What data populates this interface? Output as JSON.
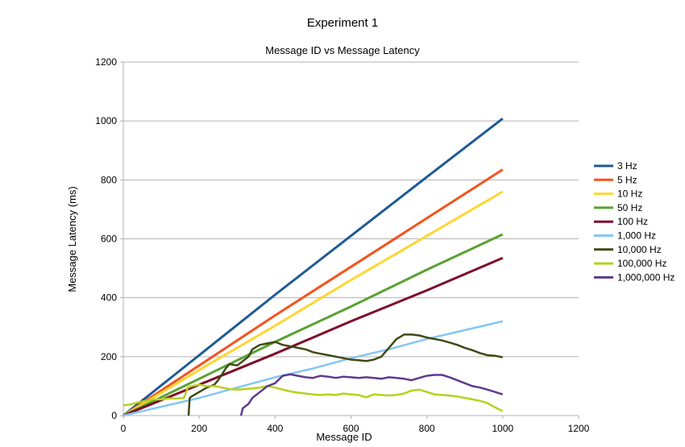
{
  "chart_data": {
    "type": "line",
    "title": "Experiment 1",
    "subtitle": "Message ID vs Message Latency",
    "xlabel": "Message ID",
    "ylabel": "Message Latency (ms)",
    "xlim": [
      0,
      1200
    ],
    "ylim": [
      0,
      1200
    ],
    "xticks": [
      0,
      200,
      400,
      600,
      800,
      1000,
      1200
    ],
    "yticks": [
      0,
      200,
      400,
      600,
      800,
      1000,
      1200
    ],
    "grid": "horizontal",
    "legend_position": "right",
    "series": [
      {
        "name": "3 Hz",
        "color": "#1f5a96",
        "points": [
          [
            0,
            0
          ],
          [
            200,
            205
          ],
          [
            400,
            410
          ],
          [
            600,
            610
          ],
          [
            800,
            810
          ],
          [
            1000,
            1008
          ]
        ]
      },
      {
        "name": "5 Hz",
        "color": "#f4531f",
        "points": [
          [
            0,
            0
          ],
          [
            200,
            170
          ],
          [
            400,
            340
          ],
          [
            600,
            505
          ],
          [
            800,
            670
          ],
          [
            1000,
            835
          ]
        ]
      },
      {
        "name": "10 Hz",
        "color": "#ffd633",
        "points": [
          [
            0,
            0
          ],
          [
            200,
            155
          ],
          [
            400,
            305
          ],
          [
            600,
            460
          ],
          [
            800,
            610
          ],
          [
            1000,
            760
          ]
        ]
      },
      {
        "name": "50 Hz",
        "color": "#5aa132",
        "points": [
          [
            0,
            0
          ],
          [
            200,
            125
          ],
          [
            400,
            250
          ],
          [
            600,
            370
          ],
          [
            800,
            495
          ],
          [
            1000,
            615
          ]
        ]
      },
      {
        "name": "100 Hz",
        "color": "#7e0d2a",
        "points": [
          [
            0,
            0
          ],
          [
            200,
            105
          ],
          [
            400,
            210
          ],
          [
            600,
            320
          ],
          [
            800,
            425
          ],
          [
            1000,
            535
          ]
        ]
      },
      {
        "name": "1,000 Hz",
        "color": "#85c6f4",
        "points": [
          [
            0,
            0
          ],
          [
            100,
            30
          ],
          [
            200,
            60
          ],
          [
            300,
            95
          ],
          [
            400,
            130
          ],
          [
            500,
            160
          ],
          [
            600,
            195
          ],
          [
            700,
            225
          ],
          [
            800,
            260
          ],
          [
            900,
            290
          ],
          [
            1000,
            320
          ]
        ]
      },
      {
        "name": "10,000 Hz",
        "color": "#3f4a14",
        "points": [
          [
            172,
            0
          ],
          [
            175,
            60
          ],
          [
            180,
            65
          ],
          [
            200,
            80
          ],
          [
            220,
            95
          ],
          [
            240,
            105
          ],
          [
            250,
            120
          ],
          [
            260,
            140
          ],
          [
            270,
            160
          ],
          [
            280,
            175
          ],
          [
            300,
            170
          ],
          [
            320,
            190
          ],
          [
            330,
            200
          ],
          [
            340,
            225
          ],
          [
            360,
            240
          ],
          [
            380,
            245
          ],
          [
            400,
            250
          ],
          [
            420,
            240
          ],
          [
            440,
            235
          ],
          [
            460,
            230
          ],
          [
            480,
            225
          ],
          [
            500,
            215
          ],
          [
            520,
            210
          ],
          [
            540,
            205
          ],
          [
            560,
            200
          ],
          [
            580,
            195
          ],
          [
            600,
            190
          ],
          [
            620,
            188
          ],
          [
            640,
            185
          ],
          [
            660,
            190
          ],
          [
            680,
            200
          ],
          [
            700,
            230
          ],
          [
            720,
            260
          ],
          [
            740,
            275
          ],
          [
            760,
            275
          ],
          [
            780,
            272
          ],
          [
            800,
            265
          ],
          [
            820,
            260
          ],
          [
            840,
            255
          ],
          [
            860,
            248
          ],
          [
            880,
            240
          ],
          [
            900,
            230
          ],
          [
            920,
            222
          ],
          [
            940,
            212
          ],
          [
            960,
            205
          ],
          [
            980,
            203
          ],
          [
            1000,
            198
          ]
        ]
      },
      {
        "name": "100,000 Hz",
        "color": "#b5d21f",
        "points": [
          [
            0,
            35
          ],
          [
            20,
            38
          ],
          [
            40,
            45
          ],
          [
            60,
            50
          ],
          [
            80,
            55
          ],
          [
            100,
            55
          ],
          [
            120,
            58
          ],
          [
            140,
            58
          ],
          [
            160,
            60
          ],
          [
            170,
            95
          ],
          [
            180,
            100
          ],
          [
            200,
            105
          ],
          [
            220,
            100
          ],
          [
            240,
            100
          ],
          [
            260,
            95
          ],
          [
            280,
            90
          ],
          [
            300,
            88
          ],
          [
            320,
            90
          ],
          [
            340,
            92
          ],
          [
            360,
            95
          ],
          [
            380,
            100
          ],
          [
            400,
            95
          ],
          [
            420,
            88
          ],
          [
            440,
            82
          ],
          [
            460,
            78
          ],
          [
            480,
            75
          ],
          [
            500,
            72
          ],
          [
            520,
            70
          ],
          [
            540,
            72
          ],
          [
            560,
            70
          ],
          [
            580,
            75
          ],
          [
            600,
            72
          ],
          [
            620,
            70
          ],
          [
            640,
            62
          ],
          [
            660,
            72
          ],
          [
            680,
            70
          ],
          [
            700,
            68
          ],
          [
            720,
            70
          ],
          [
            740,
            75
          ],
          [
            760,
            85
          ],
          [
            780,
            88
          ],
          [
            800,
            80
          ],
          [
            820,
            72
          ],
          [
            840,
            70
          ],
          [
            860,
            68
          ],
          [
            880,
            65
          ],
          [
            900,
            60
          ],
          [
            920,
            55
          ],
          [
            940,
            50
          ],
          [
            960,
            42
          ],
          [
            980,
            28
          ],
          [
            1000,
            15
          ]
        ]
      },
      {
        "name": "1,000,000 Hz",
        "color": "#5e3a8f",
        "points": [
          [
            310,
            0
          ],
          [
            315,
            25
          ],
          [
            330,
            40
          ],
          [
            340,
            60
          ],
          [
            360,
            80
          ],
          [
            380,
            100
          ],
          [
            400,
            110
          ],
          [
            420,
            135
          ],
          [
            440,
            140
          ],
          [
            460,
            135
          ],
          [
            480,
            130
          ],
          [
            500,
            128
          ],
          [
            520,
            135
          ],
          [
            540,
            132
          ],
          [
            560,
            128
          ],
          [
            580,
            132
          ],
          [
            600,
            130
          ],
          [
            620,
            128
          ],
          [
            640,
            130
          ],
          [
            660,
            128
          ],
          [
            680,
            125
          ],
          [
            700,
            130
          ],
          [
            720,
            128
          ],
          [
            740,
            125
          ],
          [
            760,
            120
          ],
          [
            780,
            128
          ],
          [
            800,
            135
          ],
          [
            820,
            138
          ],
          [
            840,
            138
          ],
          [
            860,
            130
          ],
          [
            880,
            120
          ],
          [
            900,
            110
          ],
          [
            920,
            100
          ],
          [
            940,
            95
          ],
          [
            960,
            88
          ],
          [
            980,
            80
          ],
          [
            1000,
            72
          ]
        ]
      }
    ]
  }
}
